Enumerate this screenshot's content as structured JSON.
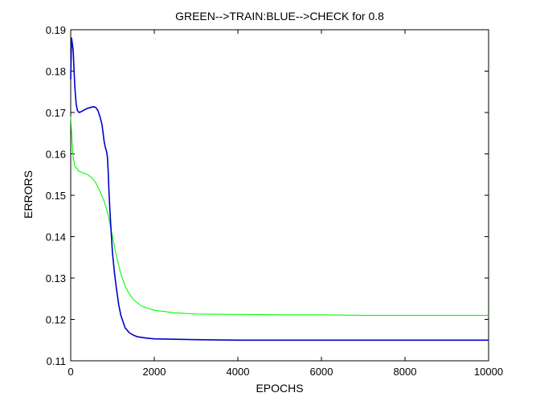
{
  "chart_data": {
    "type": "line",
    "title": "GREEN-->TRAIN:BLUE-->CHECK for 0.8",
    "xlabel": "EPOCHS",
    "ylabel": "ERRORS",
    "xlim": [
      0,
      10000
    ],
    "ylim": [
      0.11,
      0.19
    ],
    "xticks": [
      0,
      2000,
      4000,
      6000,
      8000,
      10000
    ],
    "yticks": [
      0.11,
      0.12,
      0.13,
      0.14,
      0.15,
      0.16,
      0.17,
      0.18,
      0.19
    ],
    "grid": false,
    "legend": "none",
    "series": [
      {
        "color": "#00ff00",
        "x": [
          0,
          50,
          100,
          200,
          300,
          400,
          500,
          600,
          700,
          800,
          850,
          900,
          950,
          1000,
          1050,
          1100,
          1200,
          1300,
          1400,
          1500,
          1700,
          2000,
          2500,
          3000,
          4000,
          5000,
          6000,
          7000,
          8000,
          9000,
          10000
        ],
        "y": [
          0.169,
          0.16,
          0.157,
          0.1558,
          0.1554,
          0.155,
          0.1543,
          0.153,
          0.151,
          0.1485,
          0.147,
          0.145,
          0.1425,
          0.14,
          0.1375,
          0.135,
          0.131,
          0.1281,
          0.1262,
          0.1248,
          0.1232,
          0.1222,
          0.1216,
          0.1213,
          0.1212,
          0.1211,
          0.1211,
          0.121,
          0.121,
          0.121,
          0.121
        ]
      },
      {
        "color": "#0000cd",
        "x": [
          0,
          20,
          40,
          60,
          80,
          100,
          130,
          160,
          200,
          250,
          300,
          400,
          500,
          550,
          600,
          650,
          700,
          750,
          800,
          830,
          860,
          880,
          900,
          920,
          940,
          960,
          980,
          1000,
          1050,
          1100,
          1150,
          1200,
          1300,
          1400,
          1500,
          1600,
          1800,
          2000,
          2500,
          3000,
          4000,
          5000,
          6000,
          7000,
          8000,
          9000,
          10000
        ],
        "y": [
          0.178,
          0.188,
          0.1865,
          0.185,
          0.18,
          0.176,
          0.172,
          0.1705,
          0.17,
          0.1702,
          0.1705,
          0.171,
          0.1713,
          0.1714,
          0.1712,
          0.1705,
          0.169,
          0.167,
          0.163,
          0.1615,
          0.1605,
          0.159,
          0.155,
          0.15,
          0.146,
          0.1425,
          0.139,
          0.136,
          0.131,
          0.127,
          0.1235,
          0.121,
          0.118,
          0.1168,
          0.1162,
          0.1158,
          0.1155,
          0.1153,
          0.1152,
          0.1151,
          0.115,
          0.115,
          0.115,
          0.115,
          0.115,
          0.115,
          0.115
        ]
      }
    ]
  }
}
